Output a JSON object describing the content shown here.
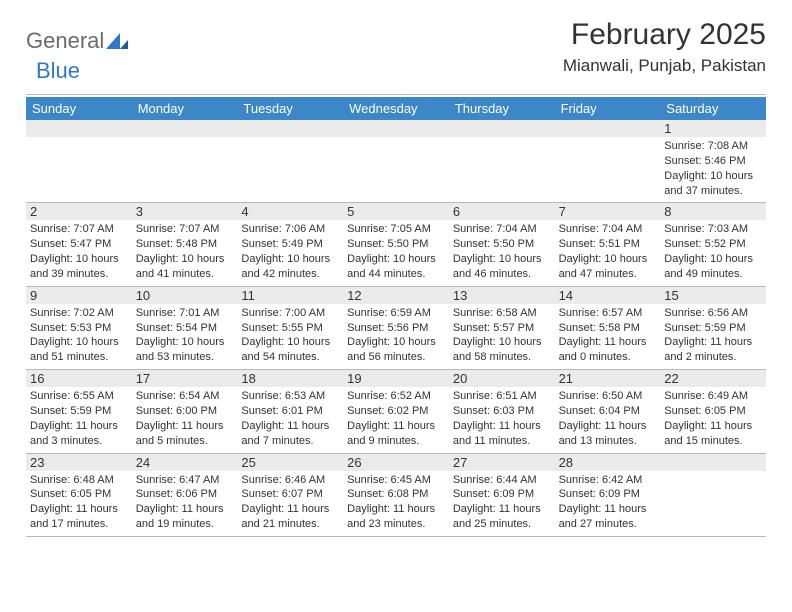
{
  "logo": {
    "general": "General",
    "blue": "Blue"
  },
  "title": "February 2025",
  "location": "Mianwali, Punjab, Pakistan",
  "colors": {
    "header_bg": "#3b87c8",
    "header_text": "#ffffff",
    "daynum_bg": "#ebebeb",
    "text": "#333333",
    "logo_gray": "#6b6b6b",
    "logo_blue": "#2f78c4",
    "divider": "#bcbcbc"
  },
  "weekdays": [
    "Sunday",
    "Monday",
    "Tuesday",
    "Wednesday",
    "Thursday",
    "Friday",
    "Saturday"
  ],
  "weeks": [
    [
      {
        "num": "",
        "sunrise": "",
        "sunset": "",
        "daylight": ""
      },
      {
        "num": "",
        "sunrise": "",
        "sunset": "",
        "daylight": ""
      },
      {
        "num": "",
        "sunrise": "",
        "sunset": "",
        "daylight": ""
      },
      {
        "num": "",
        "sunrise": "",
        "sunset": "",
        "daylight": ""
      },
      {
        "num": "",
        "sunrise": "",
        "sunset": "",
        "daylight": ""
      },
      {
        "num": "",
        "sunrise": "",
        "sunset": "",
        "daylight": ""
      },
      {
        "num": "1",
        "sunrise": "Sunrise: 7:08 AM",
        "sunset": "Sunset: 5:46 PM",
        "daylight": "Daylight: 10 hours and 37 minutes."
      }
    ],
    [
      {
        "num": "2",
        "sunrise": "Sunrise: 7:07 AM",
        "sunset": "Sunset: 5:47 PM",
        "daylight": "Daylight: 10 hours and 39 minutes."
      },
      {
        "num": "3",
        "sunrise": "Sunrise: 7:07 AM",
        "sunset": "Sunset: 5:48 PM",
        "daylight": "Daylight: 10 hours and 41 minutes."
      },
      {
        "num": "4",
        "sunrise": "Sunrise: 7:06 AM",
        "sunset": "Sunset: 5:49 PM",
        "daylight": "Daylight: 10 hours and 42 minutes."
      },
      {
        "num": "5",
        "sunrise": "Sunrise: 7:05 AM",
        "sunset": "Sunset: 5:50 PM",
        "daylight": "Daylight: 10 hours and 44 minutes."
      },
      {
        "num": "6",
        "sunrise": "Sunrise: 7:04 AM",
        "sunset": "Sunset: 5:50 PM",
        "daylight": "Daylight: 10 hours and 46 minutes."
      },
      {
        "num": "7",
        "sunrise": "Sunrise: 7:04 AM",
        "sunset": "Sunset: 5:51 PM",
        "daylight": "Daylight: 10 hours and 47 minutes."
      },
      {
        "num": "8",
        "sunrise": "Sunrise: 7:03 AM",
        "sunset": "Sunset: 5:52 PM",
        "daylight": "Daylight: 10 hours and 49 minutes."
      }
    ],
    [
      {
        "num": "9",
        "sunrise": "Sunrise: 7:02 AM",
        "sunset": "Sunset: 5:53 PM",
        "daylight": "Daylight: 10 hours and 51 minutes."
      },
      {
        "num": "10",
        "sunrise": "Sunrise: 7:01 AM",
        "sunset": "Sunset: 5:54 PM",
        "daylight": "Daylight: 10 hours and 53 minutes."
      },
      {
        "num": "11",
        "sunrise": "Sunrise: 7:00 AM",
        "sunset": "Sunset: 5:55 PM",
        "daylight": "Daylight: 10 hours and 54 minutes."
      },
      {
        "num": "12",
        "sunrise": "Sunrise: 6:59 AM",
        "sunset": "Sunset: 5:56 PM",
        "daylight": "Daylight: 10 hours and 56 minutes."
      },
      {
        "num": "13",
        "sunrise": "Sunrise: 6:58 AM",
        "sunset": "Sunset: 5:57 PM",
        "daylight": "Daylight: 10 hours and 58 minutes."
      },
      {
        "num": "14",
        "sunrise": "Sunrise: 6:57 AM",
        "sunset": "Sunset: 5:58 PM",
        "daylight": "Daylight: 11 hours and 0 minutes."
      },
      {
        "num": "15",
        "sunrise": "Sunrise: 6:56 AM",
        "sunset": "Sunset: 5:59 PM",
        "daylight": "Daylight: 11 hours and 2 minutes."
      }
    ],
    [
      {
        "num": "16",
        "sunrise": "Sunrise: 6:55 AM",
        "sunset": "Sunset: 5:59 PM",
        "daylight": "Daylight: 11 hours and 3 minutes."
      },
      {
        "num": "17",
        "sunrise": "Sunrise: 6:54 AM",
        "sunset": "Sunset: 6:00 PM",
        "daylight": "Daylight: 11 hours and 5 minutes."
      },
      {
        "num": "18",
        "sunrise": "Sunrise: 6:53 AM",
        "sunset": "Sunset: 6:01 PM",
        "daylight": "Daylight: 11 hours and 7 minutes."
      },
      {
        "num": "19",
        "sunrise": "Sunrise: 6:52 AM",
        "sunset": "Sunset: 6:02 PM",
        "daylight": "Daylight: 11 hours and 9 minutes."
      },
      {
        "num": "20",
        "sunrise": "Sunrise: 6:51 AM",
        "sunset": "Sunset: 6:03 PM",
        "daylight": "Daylight: 11 hours and 11 minutes."
      },
      {
        "num": "21",
        "sunrise": "Sunrise: 6:50 AM",
        "sunset": "Sunset: 6:04 PM",
        "daylight": "Daylight: 11 hours and 13 minutes."
      },
      {
        "num": "22",
        "sunrise": "Sunrise: 6:49 AM",
        "sunset": "Sunset: 6:05 PM",
        "daylight": "Daylight: 11 hours and 15 minutes."
      }
    ],
    [
      {
        "num": "23",
        "sunrise": "Sunrise: 6:48 AM",
        "sunset": "Sunset: 6:05 PM",
        "daylight": "Daylight: 11 hours and 17 minutes."
      },
      {
        "num": "24",
        "sunrise": "Sunrise: 6:47 AM",
        "sunset": "Sunset: 6:06 PM",
        "daylight": "Daylight: 11 hours and 19 minutes."
      },
      {
        "num": "25",
        "sunrise": "Sunrise: 6:46 AM",
        "sunset": "Sunset: 6:07 PM",
        "daylight": "Daylight: 11 hours and 21 minutes."
      },
      {
        "num": "26",
        "sunrise": "Sunrise: 6:45 AM",
        "sunset": "Sunset: 6:08 PM",
        "daylight": "Daylight: 11 hours and 23 minutes."
      },
      {
        "num": "27",
        "sunrise": "Sunrise: 6:44 AM",
        "sunset": "Sunset: 6:09 PM",
        "daylight": "Daylight: 11 hours and 25 minutes."
      },
      {
        "num": "28",
        "sunrise": "Sunrise: 6:42 AM",
        "sunset": "Sunset: 6:09 PM",
        "daylight": "Daylight: 11 hours and 27 minutes."
      },
      {
        "num": "",
        "sunrise": "",
        "sunset": "",
        "daylight": ""
      }
    ]
  ]
}
